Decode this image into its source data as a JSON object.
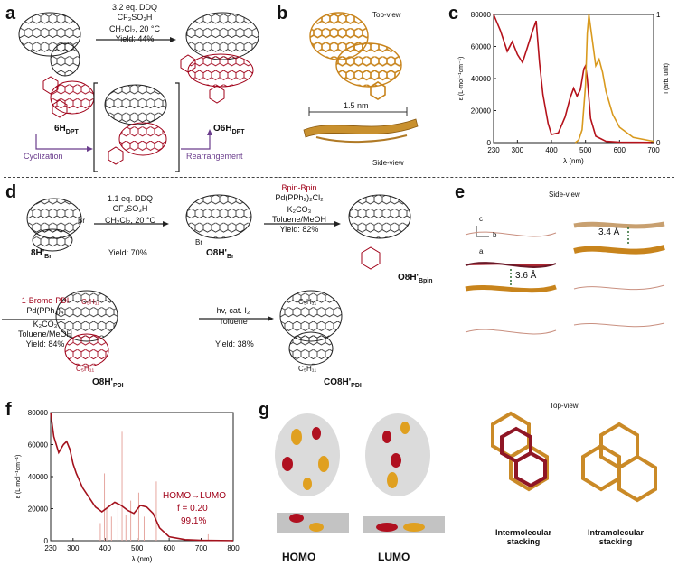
{
  "panels": {
    "a": {
      "label": "a",
      "conditions": [
        "3.2 eq. DDQ",
        "CF₃SO₃H",
        "CH₂Cl₂, 20 °C",
        "Yield: 44%"
      ],
      "start_name": "6H",
      "start_sub": "DPT",
      "product_name": "O6H",
      "product_sub": "DPT",
      "step1": "Cyclization",
      "step2": "Rearrangement"
    },
    "b": {
      "label": "b",
      "top_view": "Top-view",
      "side_view": "Side-view",
      "width": "1.5 nm"
    },
    "c": {
      "label": "c"
    },
    "d": {
      "label": "d",
      "r1_conditions": [
        "1.1 eq. DDQ",
        "CF₃SO₃H",
        "CH₂Cl₂, 20 °C"
      ],
      "r1_yield": "Yield: 70%",
      "r2_reagent": "Bpin-Bpin",
      "r2_conditions": [
        "Pd(PPh₃)₂Cl₂",
        "K₂CO₃",
        "Toluene/MeOH"
      ],
      "r2_yield": "Yield: 82%",
      "r3_reagent": "1-Bromo-PDI",
      "r3_conditions": [
        "Pd(PPh₃)₄",
        "K₂CO₃",
        "Toluene/MeOH"
      ],
      "r3_yield": "Yield: 84%",
      "r4_conditions": [
        "hv, cat. I₂",
        "Toluene"
      ],
      "r4_yield": "Yield: 38%",
      "cmp1": "8H'",
      "cmp1_sub": "Br",
      "cmp2": "O8H'",
      "cmp2_sub": "Br",
      "cmp3": "O8H'",
      "cmp3_sub": "Bpin",
      "cmp4": "O8H'",
      "cmp4_sub": "PDI",
      "cmp5": "CO8H'",
      "cmp5_sub": "PDI",
      "br": "Br",
      "alkyl": "C₅H₁₁"
    },
    "e": {
      "label": "e",
      "side_view": "Side-view",
      "top_view": "Top-view",
      "d1": "3.4 Å",
      "d2": "3.6 Å",
      "axis_c": "c",
      "axis_b": "b",
      "axis_a": "a",
      "inter": "Intermolecular stacking",
      "intra": "Intramolecular stacking"
    },
    "f": {
      "label": "f",
      "annot1": "HOMO→LUMO",
      "annot2": "f = 0.20",
      "annot3": "99.1%"
    },
    "g": {
      "label": "g",
      "homo": "HOMO",
      "lumo": "LUMO"
    }
  },
  "chart_data": [
    {
      "panel": "c",
      "type": "line",
      "xlabel": "λ (nm)",
      "ylabel": "ε (L·mol⁻¹cm⁻¹)",
      "y2label": "I (arb. unit)",
      "xlim": [
        230,
        700
      ],
      "ylim": [
        0,
        80000
      ],
      "y2lim": [
        0,
        1
      ],
      "xticks": [
        230,
        300,
        400,
        500,
        600,
        700
      ],
      "yticks": [
        0,
        20000,
        40000,
        60000,
        80000
      ],
      "y2ticks": [
        0,
        1
      ],
      "series": [
        {
          "color": "#b5121b",
          "x": [
            230,
            250,
            270,
            285,
            300,
            315,
            330,
            345,
            355,
            365,
            375,
            390,
            400,
            420,
            440,
            455,
            465,
            475,
            485,
            495,
            500,
            505,
            515,
            530,
            560,
            600,
            700
          ],
          "values": [
            80000,
            70000,
            57000,
            63000,
            55000,
            50000,
            60000,
            70000,
            76000,
            50000,
            30000,
            12000,
            5000,
            6000,
            16000,
            28000,
            34000,
            29000,
            33000,
            46000,
            48000,
            40000,
            15000,
            4000,
            800,
            300,
            100
          ]
        },
        {
          "color": "#d99a1e",
          "axis": "y2",
          "x": [
            470,
            480,
            490,
            500,
            505,
            510,
            520,
            530,
            540,
            550,
            560,
            580,
            600,
            640,
            700
          ],
          "values": [
            0.0,
            0.02,
            0.1,
            0.45,
            0.85,
            1.0,
            0.8,
            0.6,
            0.65,
            0.55,
            0.4,
            0.22,
            0.12,
            0.04,
            0.01
          ]
        }
      ]
    },
    {
      "panel": "f",
      "type": "line",
      "xlabel": "λ (nm)",
      "ylabel": "ε (L·mol⁻¹cm⁻¹)",
      "xlim": [
        230,
        800
      ],
      "ylim": [
        0,
        80000
      ],
      "xticks": [
        230,
        300,
        400,
        500,
        600,
        700,
        800
      ],
      "yticks": [
        0,
        20000,
        40000,
        60000,
        80000
      ],
      "series": [
        {
          "color": "#a3111c",
          "x": [
            230,
            240,
            255,
            270,
            280,
            290,
            300,
            310,
            330,
            350,
            370,
            390,
            410,
            430,
            450,
            470,
            490,
            510,
            530,
            550,
            570,
            600,
            650,
            700,
            800
          ],
          "values": [
            80000,
            65000,
            55000,
            60000,
            62000,
            57000,
            48000,
            42000,
            33000,
            27000,
            21000,
            18000,
            21000,
            24000,
            22000,
            19000,
            17000,
            22000,
            21000,
            17000,
            8000,
            2500,
            700,
            200,
            50
          ]
        }
      ],
      "sticks": {
        "color": "#e6a7a0",
        "x": [
          385,
          398,
          405,
          420,
          440,
          453,
          465,
          480,
          505,
          522,
          560,
          722
        ],
        "values": [
          11000,
          42000,
          20000,
          15000,
          22000,
          68000,
          16000,
          25000,
          30000,
          15000,
          37000,
          4000
        ]
      }
    }
  ]
}
